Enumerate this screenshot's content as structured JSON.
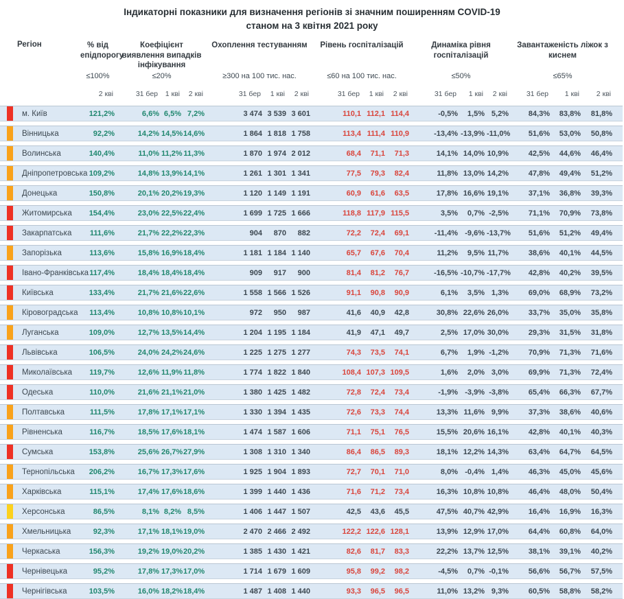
{
  "title": {
    "line1": "Індикаторні показники для визначення регіонів зі значним поширенням COVID-19",
    "line2": "станом на 3 квітня 2021 року"
  },
  "columns": {
    "region_label": "Регіон",
    "groups": [
      {
        "title": "% від епідпорогу",
        "norm": "≤100%",
        "dates": [
          "2 кві"
        ]
      },
      {
        "title": "Коефіцієнт виявлення випадків інфікування",
        "norm": "≤20%",
        "dates": [
          "31 бер",
          "1 кві",
          "2 кві"
        ]
      },
      {
        "title": "Охоплення тестуванням",
        "norm": "≥300 на 100 тис. нас.",
        "dates": [
          "31 бер",
          "1 кві",
          "2 кві"
        ]
      },
      {
        "title": "Рівень госпіталізацій",
        "norm": "≤60 на 100 тис. нас.",
        "dates": [
          "31 бер",
          "1 кві",
          "2 кві"
        ]
      },
      {
        "title": "Динаміка рівня госпіталізацій",
        "norm": "≤50%",
        "dates": [
          "31 бер",
          "1 кві",
          "2 кві"
        ]
      },
      {
        "title": "Завантаженість ліжок з киснем",
        "norm": "≤65%",
        "dates": [
          "31 бер",
          "1 кві",
          "2 кві"
        ]
      }
    ]
  },
  "colors": {
    "red": "#ee3124",
    "orange": "#f9a21b",
    "yellow": "#fcd11e",
    "teal_text": "#20876f",
    "alert_text": "#d9453c",
    "row_bg": "#dce8f4"
  },
  "rows": [
    {
      "region": "м. Київ",
      "status": "red",
      "epid": "121,2%",
      "coef": [
        "6,6%",
        "6,5%",
        "7,2%"
      ],
      "test": [
        "3 474",
        "3 539",
        "3 601"
      ],
      "hosp": [
        "110,1",
        "112,1",
        "114,4"
      ],
      "hosp_red": true,
      "dyn": [
        "-0,5%",
        "1,5%",
        "5,2%"
      ],
      "load": [
        "84,3%",
        "83,8%",
        "81,8%"
      ]
    },
    {
      "region": "Вінницька",
      "status": "orange",
      "epid": "92,2%",
      "coef": [
        "14,2%",
        "14,5%",
        "14,6%"
      ],
      "test": [
        "1 864",
        "1 818",
        "1 758"
      ],
      "hosp": [
        "113,4",
        "111,4",
        "110,9"
      ],
      "hosp_red": true,
      "dyn": [
        "-13,4%",
        "-13,9%",
        "-11,0%"
      ],
      "load": [
        "51,6%",
        "53,0%",
        "50,8%"
      ]
    },
    {
      "region": "Волинська",
      "status": "orange",
      "epid": "140,4%",
      "coef": [
        "11,0%",
        "11,2%",
        "11,3%"
      ],
      "test": [
        "1 870",
        "1 974",
        "2 012"
      ],
      "hosp": [
        "68,4",
        "71,1",
        "71,3"
      ],
      "hosp_red": true,
      "dyn": [
        "14,1%",
        "14,0%",
        "10,9%"
      ],
      "load": [
        "42,5%",
        "44,6%",
        "46,4%"
      ]
    },
    {
      "region": "Дніпропетровська",
      "status": "orange",
      "epid": "109,2%",
      "coef": [
        "14,8%",
        "13,9%",
        "14,1%"
      ],
      "test": [
        "1 261",
        "1 301",
        "1 341"
      ],
      "hosp": [
        "77,5",
        "79,3",
        "82,4"
      ],
      "hosp_red": true,
      "dyn": [
        "11,8%",
        "13,0%",
        "14,2%"
      ],
      "load": [
        "47,8%",
        "49,4%",
        "51,2%"
      ]
    },
    {
      "region": "Донецька",
      "status": "orange",
      "epid": "150,8%",
      "coef": [
        "20,1%",
        "20,2%",
        "19,3%"
      ],
      "test": [
        "1 120",
        "1 149",
        "1 191"
      ],
      "hosp": [
        "60,9",
        "61,6",
        "63,5"
      ],
      "hosp_red": true,
      "dyn": [
        "17,8%",
        "16,6%",
        "19,1%"
      ],
      "load": [
        "37,1%",
        "36,8%",
        "39,3%"
      ]
    },
    {
      "region": "Житомирська",
      "status": "red",
      "epid": "154,4%",
      "coef": [
        "23,0%",
        "22,5%",
        "22,4%"
      ],
      "test": [
        "1 699",
        "1 725",
        "1 666"
      ],
      "hosp": [
        "118,8",
        "117,9",
        "115,5"
      ],
      "hosp_red": true,
      "dyn": [
        "3,5%",
        "0,7%",
        "-2,5%"
      ],
      "load": [
        "71,1%",
        "70,9%",
        "73,8%"
      ]
    },
    {
      "region": "Закарпатська",
      "status": "red",
      "epid": "111,6%",
      "coef": [
        "21,7%",
        "22,2%",
        "22,3%"
      ],
      "test": [
        "904",
        "870",
        "882"
      ],
      "hosp": [
        "72,2",
        "72,4",
        "69,1"
      ],
      "hosp_red": true,
      "dyn": [
        "-11,4%",
        "-9,6%",
        "-13,7%"
      ],
      "load": [
        "51,6%",
        "51,2%",
        "49,4%"
      ]
    },
    {
      "region": "Запорізька",
      "status": "orange",
      "epid": "113,6%",
      "coef": [
        "15,8%",
        "16,9%",
        "18,4%"
      ],
      "test": [
        "1 181",
        "1 184",
        "1 140"
      ],
      "hosp": [
        "65,7",
        "67,6",
        "70,4"
      ],
      "hosp_red": true,
      "dyn": [
        "11,2%",
        "9,5%",
        "11,7%"
      ],
      "load": [
        "38,6%",
        "40,1%",
        "44,5%"
      ]
    },
    {
      "region": "Івано-Франківська",
      "status": "red",
      "epid": "117,4%",
      "coef": [
        "18,4%",
        "18,4%",
        "18,4%"
      ],
      "test": [
        "909",
        "917",
        "900"
      ],
      "hosp": [
        "81,4",
        "81,2",
        "76,7"
      ],
      "hosp_red": true,
      "dyn": [
        "-16,5%",
        "-10,7%",
        "-17,7%"
      ],
      "load": [
        "42,8%",
        "40,2%",
        "39,5%"
      ]
    },
    {
      "region": "Київська",
      "status": "red",
      "epid": "133,4%",
      "coef": [
        "21,7%",
        "21,6%",
        "22,6%"
      ],
      "test": [
        "1 558",
        "1 566",
        "1 526"
      ],
      "hosp": [
        "91,1",
        "90,8",
        "90,9"
      ],
      "hosp_red": true,
      "dyn": [
        "6,1%",
        "3,5%",
        "1,3%"
      ],
      "load": [
        "69,0%",
        "68,9%",
        "73,2%"
      ]
    },
    {
      "region": "Кіровоградська",
      "status": "orange",
      "epid": "113,4%",
      "coef": [
        "10,8%",
        "10,8%",
        "10,1%"
      ],
      "test": [
        "972",
        "950",
        "987"
      ],
      "hosp": [
        "41,6",
        "40,9",
        "42,8"
      ],
      "hosp_red": false,
      "dyn": [
        "30,8%",
        "22,6%",
        "26,0%"
      ],
      "load": [
        "33,7%",
        "35,0%",
        "35,8%"
      ]
    },
    {
      "region": "Луганська",
      "status": "orange",
      "epid": "109,0%",
      "coef": [
        "12,7%",
        "13,5%",
        "14,4%"
      ],
      "test": [
        "1 204",
        "1 195",
        "1 184"
      ],
      "hosp": [
        "41,9",
        "47,1",
        "49,7"
      ],
      "hosp_red": false,
      "dyn": [
        "2,5%",
        "17,0%",
        "30,0%"
      ],
      "load": [
        "29,3%",
        "31,5%",
        "31,8%"
      ]
    },
    {
      "region": "Львівська",
      "status": "red",
      "epid": "106,5%",
      "coef": [
        "24,0%",
        "24,2%",
        "24,6%"
      ],
      "test": [
        "1 225",
        "1 275",
        "1 277"
      ],
      "hosp": [
        "74,3",
        "73,5",
        "74,1"
      ],
      "hosp_red": true,
      "dyn": [
        "6,7%",
        "1,9%",
        "-1,2%"
      ],
      "load": [
        "70,9%",
        "71,3%",
        "71,6%"
      ]
    },
    {
      "region": "Миколаївська",
      "status": "red",
      "epid": "119,7%",
      "coef": [
        "12,6%",
        "11,9%",
        "11,8%"
      ],
      "test": [
        "1 774",
        "1 822",
        "1 840"
      ],
      "hosp": [
        "108,4",
        "107,3",
        "109,5"
      ],
      "hosp_red": true,
      "dyn": [
        "1,6%",
        "2,0%",
        "3,0%"
      ],
      "load": [
        "69,9%",
        "71,3%",
        "72,4%"
      ]
    },
    {
      "region": "Одеська",
      "status": "red",
      "epid": "110,0%",
      "coef": [
        "21,6%",
        "21,1%",
        "21,0%"
      ],
      "test": [
        "1 380",
        "1 425",
        "1 482"
      ],
      "hosp": [
        "72,8",
        "72,4",
        "73,4"
      ],
      "hosp_red": true,
      "dyn": [
        "-1,9%",
        "-3,9%",
        "-3,8%"
      ],
      "load": [
        "65,4%",
        "66,3%",
        "67,7%"
      ]
    },
    {
      "region": "Полтавська",
      "status": "orange",
      "epid": "111,5%",
      "coef": [
        "17,8%",
        "17,1%",
        "17,1%"
      ],
      "test": [
        "1 330",
        "1 394",
        "1 435"
      ],
      "hosp": [
        "72,6",
        "73,3",
        "74,4"
      ],
      "hosp_red": true,
      "dyn": [
        "13,3%",
        "11,6%",
        "9,9%"
      ],
      "load": [
        "37,3%",
        "38,6%",
        "40,6%"
      ]
    },
    {
      "region": "Рівненська",
      "status": "orange",
      "epid": "116,7%",
      "coef": [
        "18,5%",
        "17,6%",
        "18,1%"
      ],
      "test": [
        "1 474",
        "1 587",
        "1 606"
      ],
      "hosp": [
        "71,1",
        "75,1",
        "76,5"
      ],
      "hosp_red": true,
      "dyn": [
        "15,5%",
        "20,6%",
        "16,1%"
      ],
      "load": [
        "42,8%",
        "40,1%",
        "40,3%"
      ]
    },
    {
      "region": "Сумська",
      "status": "red",
      "epid": "153,8%",
      "coef": [
        "25,6%",
        "26,7%",
        "27,9%"
      ],
      "test": [
        "1 308",
        "1 310",
        "1 340"
      ],
      "hosp": [
        "86,4",
        "86,5",
        "89,3"
      ],
      "hosp_red": true,
      "dyn": [
        "18,1%",
        "12,2%",
        "14,3%"
      ],
      "load": [
        "63,4%",
        "64,7%",
        "64,5%"
      ]
    },
    {
      "region": "Тернопільська",
      "status": "orange",
      "epid": "206,2%",
      "coef": [
        "16,7%",
        "17,3%",
        "17,6%"
      ],
      "test": [
        "1 925",
        "1 904",
        "1 893"
      ],
      "hosp": [
        "72,7",
        "70,1",
        "71,0"
      ],
      "hosp_red": true,
      "dyn": [
        "8,0%",
        "-0,4%",
        "1,4%"
      ],
      "load": [
        "46,3%",
        "45,0%",
        "45,6%"
      ]
    },
    {
      "region": "Харківська",
      "status": "orange",
      "epid": "115,1%",
      "coef": [
        "17,4%",
        "17,6%",
        "18,6%"
      ],
      "test": [
        "1 399",
        "1 440",
        "1 436"
      ],
      "hosp": [
        "71,6",
        "71,2",
        "73,4"
      ],
      "hosp_red": true,
      "dyn": [
        "16,3%",
        "10,8%",
        "10,8%"
      ],
      "load": [
        "46,4%",
        "48,0%",
        "50,4%"
      ]
    },
    {
      "region": "Херсонська",
      "status": "yellow",
      "epid": "86,5%",
      "coef": [
        "8,1%",
        "8,2%",
        "8,5%"
      ],
      "test": [
        "1 406",
        "1 447",
        "1 507"
      ],
      "hosp": [
        "42,5",
        "43,6",
        "45,5"
      ],
      "hosp_red": false,
      "dyn": [
        "47,5%",
        "40,7%",
        "42,9%"
      ],
      "load": [
        "16,4%",
        "16,9%",
        "16,3%"
      ]
    },
    {
      "region": "Хмельницька",
      "status": "orange",
      "epid": "92,3%",
      "coef": [
        "17,1%",
        "18,1%",
        "19,0%"
      ],
      "test": [
        "2 470",
        "2 466",
        "2 492"
      ],
      "hosp": [
        "122,2",
        "122,6",
        "128,1"
      ],
      "hosp_red": true,
      "dyn": [
        "13,9%",
        "12,9%",
        "17,0%"
      ],
      "load": [
        "64,4%",
        "60,8%",
        "64,0%"
      ]
    },
    {
      "region": "Черкаська",
      "status": "orange",
      "epid": "156,3%",
      "coef": [
        "19,2%",
        "19,0%",
        "20,2%"
      ],
      "test": [
        "1 385",
        "1 430",
        "1 421"
      ],
      "hosp": [
        "82,6",
        "81,7",
        "83,3"
      ],
      "hosp_red": true,
      "dyn": [
        "22,2%",
        "13,7%",
        "12,5%"
      ],
      "load": [
        "38,1%",
        "39,1%",
        "40,2%"
      ]
    },
    {
      "region": "Чернівецька",
      "status": "red",
      "epid": "95,2%",
      "coef": [
        "17,8%",
        "17,3%",
        "17,0%"
      ],
      "test": [
        "1 714",
        "1 679",
        "1 609"
      ],
      "hosp": [
        "95,8",
        "99,2",
        "98,2"
      ],
      "hosp_red": true,
      "dyn": [
        "-4,5%",
        "0,7%",
        "-0,1%"
      ],
      "load": [
        "56,6%",
        "56,7%",
        "57,5%"
      ]
    },
    {
      "region": "Чернігівська",
      "status": "red",
      "epid": "103,5%",
      "coef": [
        "16,0%",
        "18,2%",
        "18,4%"
      ],
      "test": [
        "1 487",
        "1 408",
        "1 440"
      ],
      "hosp": [
        "93,3",
        "96,5",
        "96,5"
      ],
      "hosp_red": true,
      "dyn": [
        "11,0%",
        "13,2%",
        "9,3%"
      ],
      "load": [
        "60,5%",
        "58,8%",
        "58,2%"
      ]
    }
  ]
}
